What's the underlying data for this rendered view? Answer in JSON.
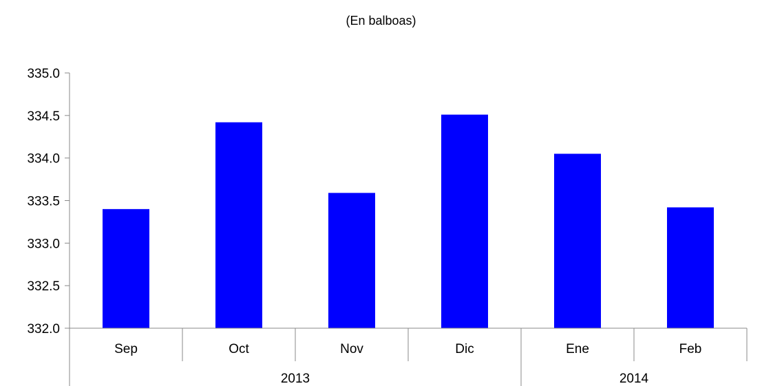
{
  "chart_data": {
    "type": "bar",
    "subtitle": "(En balboas)",
    "categories": [
      "Sep",
      "Oct",
      "Nov",
      "Dic",
      "Ene",
      "Feb"
    ],
    "groups": [
      {
        "label": "2013",
        "span": 4
      },
      {
        "label": "2014",
        "span": 2
      }
    ],
    "values": [
      333.4,
      334.42,
      333.59,
      334.51,
      334.05,
      333.42
    ],
    "ylim": [
      332.0,
      335.0
    ],
    "yticks": [
      "332.0",
      "332.5",
      "333.0",
      "333.5",
      "334.0",
      "334.5",
      "335.0"
    ],
    "bar_color": "#0000FF",
    "grid": false,
    "legend": "none"
  }
}
